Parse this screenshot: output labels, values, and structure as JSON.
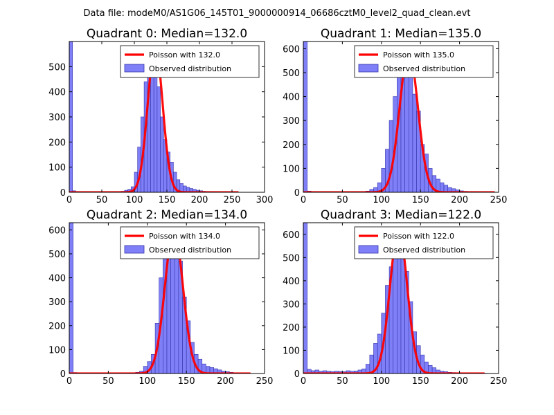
{
  "figure": {
    "suptitle": "Data file: modeM0/AS1G06_145T01_9000000914_06686cztM0_level2_quad_clean.evt"
  },
  "chart_data": [
    {
      "type": "bar",
      "title": "Quadrant 0: Median=132.0",
      "xlim": [
        0,
        300
      ],
      "ylim": [
        0,
        600
      ],
      "xticks": [
        0,
        50,
        100,
        150,
        200,
        250,
        300
      ],
      "yticks": [
        0,
        100,
        200,
        300,
        400,
        500
      ],
      "bin_width": 5,
      "legend": {
        "poisson": "Poisson with 132.0",
        "observed": "Observed distribution",
        "location": "upper-right"
      },
      "series": [
        {
          "name": "Observed distribution",
          "kind": "histogram",
          "bin_starts": [
            0,
            5,
            10,
            15,
            20,
            25,
            30,
            35,
            40,
            45,
            50,
            55,
            60,
            65,
            70,
            75,
            80,
            85,
            90,
            95,
            100,
            105,
            110,
            115,
            120,
            125,
            130,
            135,
            140,
            145,
            150,
            155,
            160,
            165,
            170,
            175,
            180,
            185,
            190,
            195,
            200,
            205,
            210,
            215,
            220,
            225,
            230,
            235,
            240,
            245,
            250
          ],
          "counts": [
            600,
            6,
            3,
            2,
            1,
            1,
            1,
            0,
            1,
            0,
            1,
            0,
            0,
            1,
            1,
            2,
            4,
            8,
            12,
            22,
            80,
            180,
            300,
            440,
            560,
            580,
            500,
            420,
            300,
            210,
            160,
            120,
            80,
            50,
            35,
            25,
            20,
            15,
            12,
            8,
            6,
            4,
            3,
            2,
            2,
            1,
            1,
            1,
            1,
            0,
            1
          ]
        },
        {
          "name": "Poisson with 132.0",
          "kind": "poisson",
          "lambda": 132.0,
          "peak": 580,
          "x_range": [
            0,
            260
          ]
        }
      ]
    },
    {
      "type": "bar",
      "title": "Quadrant 1: Median=135.0",
      "xlim": [
        0,
        250
      ],
      "ylim": [
        0,
        630
      ],
      "xticks": [
        0,
        50,
        100,
        150,
        200,
        250
      ],
      "yticks": [
        0,
        100,
        200,
        300,
        400,
        500,
        600
      ],
      "bin_width": 5,
      "legend": {
        "poisson": "Poisson with 135.0",
        "observed": "Observed distribution",
        "location": "upper-right"
      },
      "series": [
        {
          "name": "Observed distribution",
          "kind": "histogram",
          "bin_starts": [
            0,
            5,
            10,
            15,
            20,
            25,
            30,
            35,
            40,
            45,
            50,
            55,
            60,
            65,
            70,
            75,
            80,
            85,
            90,
            95,
            100,
            105,
            110,
            115,
            120,
            125,
            130,
            135,
            140,
            145,
            150,
            155,
            160,
            165,
            170,
            175,
            180,
            185,
            190,
            195,
            200,
            205,
            210,
            215,
            220,
            225,
            230,
            235,
            240
          ],
          "counts": [
            630,
            5,
            2,
            1,
            1,
            1,
            0,
            1,
            0,
            1,
            0,
            1,
            1,
            1,
            2,
            3,
            5,
            12,
            20,
            40,
            100,
            180,
            300,
            400,
            520,
            600,
            590,
            520,
            410,
            340,
            200,
            160,
            100,
            70,
            55,
            40,
            30,
            20,
            15,
            10,
            6,
            4,
            3,
            2,
            1,
            1,
            1,
            0,
            1
          ]
        },
        {
          "name": "Poisson with 135.0",
          "kind": "poisson",
          "lambda": 135.0,
          "peak": 590,
          "x_range": [
            0,
            245
          ]
        }
      ]
    },
    {
      "type": "bar",
      "title": "Quadrant 2: Median=134.0",
      "xlim": [
        0,
        250
      ],
      "ylim": [
        0,
        630
      ],
      "xticks": [
        0,
        50,
        100,
        150,
        200,
        250
      ],
      "yticks": [
        0,
        100,
        200,
        300,
        400,
        500,
        600
      ],
      "bin_width": 5,
      "legend": {
        "poisson": "Poisson with 134.0",
        "observed": "Observed distribution",
        "location": "upper-right"
      },
      "series": [
        {
          "name": "Observed distribution",
          "kind": "histogram",
          "bin_starts": [
            0,
            5,
            10,
            15,
            20,
            25,
            30,
            35,
            40,
            45,
            50,
            55,
            60,
            65,
            70,
            75,
            80,
            85,
            90,
            95,
            100,
            105,
            110,
            115,
            120,
            125,
            130,
            135,
            140,
            145,
            150,
            155,
            160,
            165,
            170,
            175,
            180,
            185,
            190,
            195,
            200,
            205,
            210,
            215,
            220,
            225
          ],
          "counts": [
            630,
            4,
            2,
            1,
            1,
            1,
            0,
            1,
            0,
            0,
            1,
            0,
            1,
            1,
            1,
            2,
            3,
            5,
            10,
            30,
            50,
            80,
            210,
            400,
            480,
            560,
            600,
            580,
            470,
            320,
            220,
            130,
            80,
            60,
            40,
            30,
            25,
            20,
            15,
            10,
            8,
            5,
            3,
            2,
            1,
            1
          ]
        },
        {
          "name": "Poisson with 134.0",
          "kind": "poisson",
          "lambda": 134.0,
          "peak": 600,
          "x_range": [
            0,
            232
          ]
        }
      ]
    },
    {
      "type": "bar",
      "title": "Quadrant 3: Median=122.0",
      "xlim": [
        0,
        250
      ],
      "ylim": [
        0,
        650
      ],
      "xticks": [
        0,
        50,
        100,
        150,
        200,
        250
      ],
      "yticks": [
        0,
        100,
        200,
        300,
        400,
        500,
        600
      ],
      "bin_width": 5,
      "legend": {
        "poisson": "Poisson with 122.0",
        "observed": "Observed distribution",
        "location": "upper-right"
      },
      "series": [
        {
          "name": "Observed distribution",
          "kind": "histogram",
          "bin_starts": [
            0,
            5,
            10,
            15,
            20,
            25,
            30,
            35,
            40,
            45,
            50,
            55,
            60,
            65,
            70,
            75,
            80,
            85,
            90,
            95,
            100,
            105,
            110,
            115,
            120,
            125,
            130,
            135,
            140,
            145,
            150,
            155,
            160,
            165,
            170,
            175,
            180,
            185,
            190,
            195,
            200,
            205,
            210,
            215,
            220,
            225,
            230
          ],
          "counts": [
            650,
            18,
            12,
            15,
            10,
            12,
            10,
            8,
            10,
            9,
            8,
            12,
            10,
            11,
            15,
            20,
            40,
            80,
            130,
            170,
            260,
            380,
            460,
            600,
            620,
            540,
            440,
            310,
            180,
            120,
            80,
            50,
            35,
            25,
            15,
            10,
            8,
            5,
            4,
            3,
            2,
            2,
            1,
            1,
            1,
            0,
            1
          ]
        },
        {
          "name": "Poisson with 122.0",
          "kind": "poisson",
          "lambda": 122.0,
          "peak": 620,
          "x_range": [
            0,
            232
          ]
        }
      ]
    }
  ],
  "style": {
    "bar_fill": "#7f7ff7",
    "bar_edge": "#3333aa",
    "poisson_color": "#ff0000",
    "axes_color": "#000000"
  }
}
